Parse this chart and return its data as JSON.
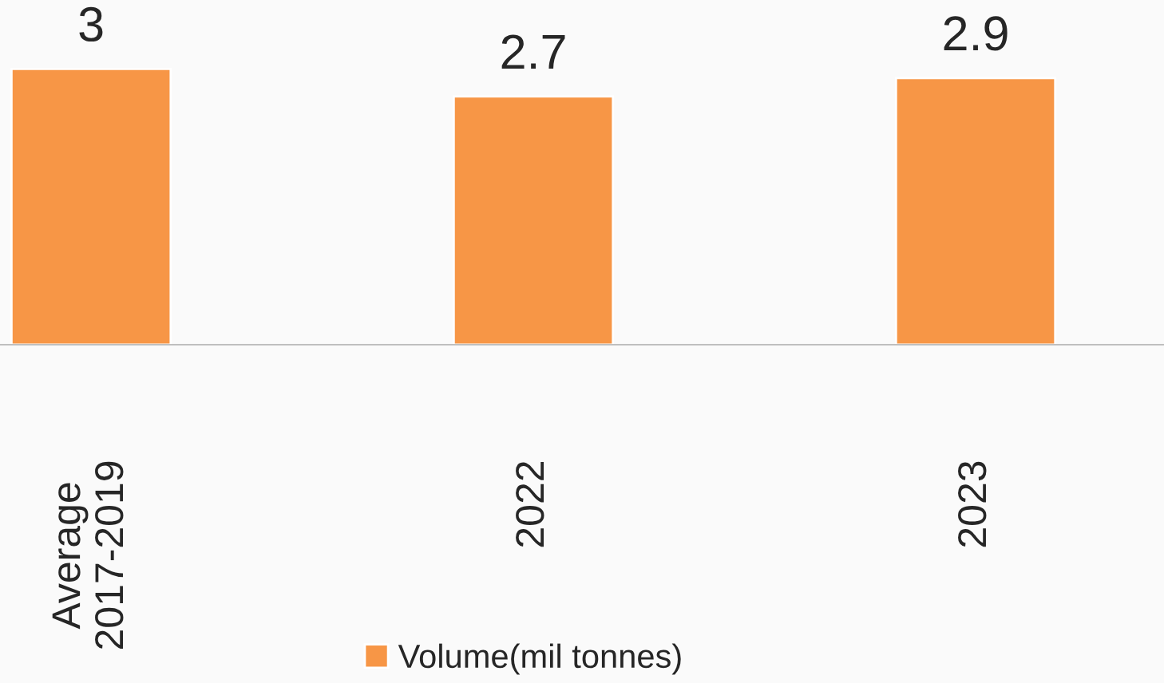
{
  "chart_data": {
    "type": "bar",
    "categories": [
      "Average\n2017-2019",
      "2022",
      "2023"
    ],
    "series": [
      {
        "name": "Volume(mil tonnes)",
        "color": "#f79646",
        "values": [
          3,
          2.7,
          2.9
        ]
      }
    ],
    "tick_labels": "x",
    "data_labels": true,
    "legend": "bottom",
    "grid": false
  }
}
